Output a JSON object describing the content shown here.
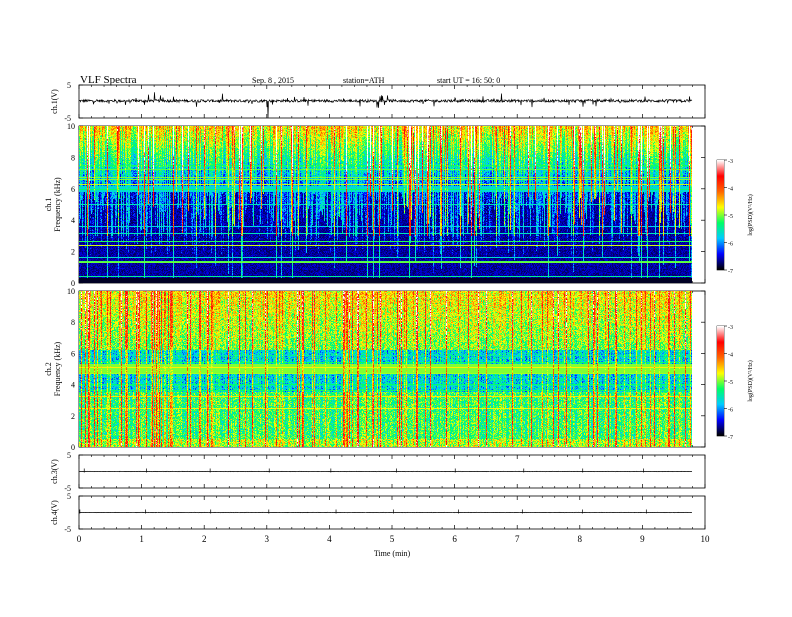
{
  "header": {
    "title": "VLF  Spectra",
    "date": "Sep. 8  , 2015",
    "station": "station=ATH",
    "start_ut": "start  UT  =    16: 50: 0"
  },
  "chart_data": [
    {
      "type": "line",
      "ylabel": "ch.1(V)",
      "ylim": [
        -5,
        5
      ],
      "yticklabels": [
        "5",
        "-5"
      ],
      "description": "ch.1 waveform, baseline near 0 V with frequent spikes",
      "x_range": [
        0,
        9.8
      ],
      "baseline": 0.2
    },
    {
      "type": "heatmap",
      "panel": "ch.1",
      "ylabel": [
        "ch.1",
        "Frequency  (kHz)"
      ],
      "ylim": [
        0,
        10
      ],
      "yticklabels": [
        "0",
        "2",
        "4",
        "6",
        "8",
        "10"
      ],
      "x_range": [
        0,
        9.8
      ],
      "colorbar": {
        "label": "log(PSD)(V²/Hz)",
        "range": [
          -7,
          -3
        ],
        "ticklabels": [
          "-3",
          "-4",
          "-5",
          "-6",
          "-7"
        ]
      }
    },
    {
      "type": "heatmap",
      "panel": "ch.2",
      "ylabel": [
        "ch.2",
        "Frequency  (kHz)"
      ],
      "ylim": [
        0,
        10
      ],
      "yticklabels": [
        "0",
        "2",
        "4",
        "6",
        "8",
        "10"
      ],
      "x_range": [
        0,
        9.8
      ],
      "colorbar": {
        "label": "log(PSD)(V²/Hz)",
        "range": [
          -7,
          -3
        ],
        "ticklabels": [
          "-3",
          "-4",
          "-5",
          "-6",
          "-7"
        ]
      }
    },
    {
      "type": "line",
      "ylabel": "ch.3(V)",
      "ylim": [
        -5,
        5
      ],
      "yticklabels": [
        "5",
        "-5"
      ],
      "x_range": [
        0,
        9.8
      ],
      "baseline": 0
    },
    {
      "type": "line",
      "ylabel": "ch.4(V)",
      "ylim": [
        -5,
        5
      ],
      "yticklabels": [
        "5",
        "-5"
      ],
      "x_range": [
        0,
        9.8
      ],
      "baseline": 0
    }
  ],
  "xaxis": {
    "label": "Time  (min)",
    "xlim": [
      0,
      10
    ],
    "ticklabels": [
      "0",
      "1",
      "2",
      "3",
      "4",
      "5",
      "6",
      "7",
      "8",
      "9",
      "10"
    ]
  },
  "colors": {
    "axis": "#000000",
    "background": "#ffffff",
    "colormap": [
      "#000000",
      "#0000ff",
      "#00ccff",
      "#00ff66",
      "#ffff00",
      "#ff6600",
      "#ff0000",
      "#ffffff"
    ]
  }
}
